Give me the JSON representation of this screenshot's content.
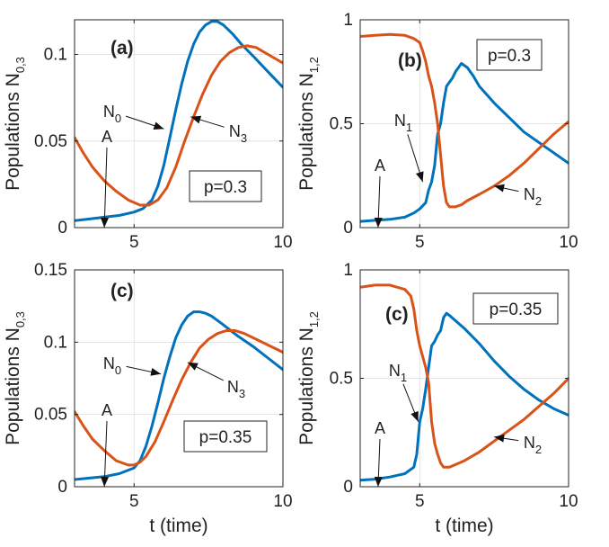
{
  "figure": {
    "xlabel": "t (time)",
    "colors": {
      "series_blue": "#0072BD",
      "series_orange": "#D95319",
      "axis": "#262626",
      "grid": "#e3e3e3"
    }
  },
  "chart_data": [
    {
      "type": "line",
      "panel_label": "(a)",
      "ylabel": "Populations N",
      "ylabel_sub": "0,3",
      "xlabel": "",
      "xlim": [
        3,
        10
      ],
      "ylim": [
        0,
        0.12
      ],
      "xticks": [
        {
          "v": 5,
          "label": "5"
        },
        {
          "v": 10,
          "label": "10"
        }
      ],
      "yticks": [
        {
          "v": 0,
          "label": "0"
        },
        {
          "v": 0.05,
          "label": "0.05"
        },
        {
          "v": 0.1,
          "label": "0.1"
        }
      ],
      "p_label": "p=0.3",
      "series": [
        {
          "name": "N0",
          "color": "#0072BD",
          "x": [
            3.0,
            3.5,
            4.0,
            4.5,
            5.0,
            5.3,
            5.6,
            5.8,
            6.0,
            6.2,
            6.4,
            6.6,
            6.8,
            7.0,
            7.2,
            7.4,
            7.6,
            7.8,
            8.0,
            8.3,
            8.6,
            9.0,
            9.5,
            10.0
          ],
          "values": [
            0.004,
            0.005,
            0.006,
            0.007,
            0.009,
            0.011,
            0.016,
            0.024,
            0.036,
            0.052,
            0.068,
            0.083,
            0.096,
            0.106,
            0.113,
            0.117,
            0.119,
            0.119,
            0.117,
            0.112,
            0.106,
            0.099,
            0.09,
            0.081
          ]
        },
        {
          "name": "N3",
          "color": "#D95319",
          "x": [
            3.0,
            3.3,
            3.6,
            4.0,
            4.4,
            4.8,
            5.2,
            5.5,
            5.8,
            6.1,
            6.4,
            6.7,
            7.0,
            7.3,
            7.6,
            7.9,
            8.2,
            8.5,
            8.8,
            9.1,
            9.5,
            10.0
          ],
          "values": [
            0.052,
            0.043,
            0.035,
            0.027,
            0.021,
            0.016,
            0.013,
            0.013,
            0.016,
            0.023,
            0.035,
            0.05,
            0.064,
            0.077,
            0.088,
            0.096,
            0.101,
            0.104,
            0.105,
            0.104,
            0.1,
            0.095
          ]
        }
      ],
      "annotations": [
        {
          "text": "A",
          "target": [
            4.0,
            0.0
          ]
        },
        {
          "text": "N",
          "sub": "0",
          "target": [
            6.0,
            0.057
          ]
        },
        {
          "text": "N",
          "sub": "3",
          "target": [
            6.9,
            0.064
          ]
        }
      ]
    },
    {
      "type": "line",
      "panel_label": "(b)",
      "ylabel": "Populations N",
      "ylabel_sub": "1,2",
      "xlabel": "",
      "xlim": [
        3,
        10
      ],
      "ylim": [
        0,
        1
      ],
      "xticks": [
        {
          "v": 5,
          "label": "5"
        },
        {
          "v": 10,
          "label": "10"
        }
      ],
      "yticks": [
        {
          "v": 0,
          "label": "0"
        },
        {
          "v": 0.5,
          "label": "0.5"
        },
        {
          "v": 1,
          "label": "1"
        }
      ],
      "p_label": "p=0.3",
      "series": [
        {
          "name": "N1",
          "color": "#0072BD",
          "x": [
            3.0,
            3.5,
            4.0,
            4.5,
            4.8,
            5.0,
            5.2,
            5.3,
            5.4,
            5.5,
            5.6,
            5.7,
            5.8,
            5.9,
            6.0,
            6.1,
            6.2,
            6.4,
            6.6,
            6.8,
            7.0,
            7.5,
            8.0,
            8.5,
            9.0,
            9.5,
            10.0
          ],
          "values": [
            0.03,
            0.035,
            0.04,
            0.05,
            0.07,
            0.09,
            0.12,
            0.18,
            0.22,
            0.3,
            0.45,
            0.5,
            0.6,
            0.68,
            0.7,
            0.72,
            0.75,
            0.79,
            0.77,
            0.73,
            0.68,
            0.6,
            0.53,
            0.46,
            0.41,
            0.36,
            0.31
          ]
        },
        {
          "name": "N2",
          "color": "#D95319",
          "x": [
            3.0,
            3.5,
            4.0,
            4.5,
            4.8,
            5.0,
            5.1,
            5.2,
            5.3,
            5.4,
            5.5,
            5.6,
            5.7,
            5.8,
            5.9,
            6.0,
            6.2,
            6.4,
            6.6,
            7.0,
            7.5,
            8.0,
            8.5,
            9.0,
            9.5,
            10.0
          ],
          "values": [
            0.92,
            0.925,
            0.93,
            0.925,
            0.91,
            0.89,
            0.85,
            0.8,
            0.73,
            0.68,
            0.6,
            0.5,
            0.35,
            0.2,
            0.12,
            0.1,
            0.1,
            0.11,
            0.13,
            0.16,
            0.2,
            0.25,
            0.31,
            0.38,
            0.45,
            0.51
          ]
        }
      ],
      "annotations": [
        {
          "text": "A",
          "target": [
            3.6,
            0.0
          ]
        },
        {
          "text": "N",
          "sub": "1",
          "target": [
            5.1,
            0.22
          ]
        },
        {
          "text": "N",
          "sub": "2",
          "target": [
            7.5,
            0.2
          ]
        }
      ]
    },
    {
      "type": "line",
      "panel_label": "(c)",
      "ylabel": "Populations N",
      "ylabel_sub": "0,3",
      "xlabel": "t (time)",
      "xlim": [
        3,
        10
      ],
      "ylim": [
        0,
        0.15
      ],
      "xticks": [
        {
          "v": 5,
          "label": "5"
        },
        {
          "v": 10,
          "label": "10"
        }
      ],
      "yticks": [
        {
          "v": 0,
          "label": "0"
        },
        {
          "v": 0.05,
          "label": "0.05"
        },
        {
          "v": 0.1,
          "label": "0.1"
        },
        {
          "v": 0.15,
          "label": "0.15"
        }
      ],
      "p_label": "p=0.35",
      "series": [
        {
          "name": "N0",
          "color": "#0072BD",
          "x": [
            3.0,
            3.5,
            4.0,
            4.5,
            5.0,
            5.2,
            5.4,
            5.6,
            5.8,
            6.0,
            6.2,
            6.4,
            6.6,
            6.8,
            7.0,
            7.2,
            7.4,
            7.6,
            7.8,
            8.0,
            8.5,
            9.0,
            9.5,
            10.0
          ],
          "values": [
            0.005,
            0.006,
            0.007,
            0.009,
            0.013,
            0.018,
            0.028,
            0.042,
            0.058,
            0.075,
            0.09,
            0.103,
            0.112,
            0.118,
            0.121,
            0.121,
            0.12,
            0.118,
            0.115,
            0.112,
            0.104,
            0.097,
            0.089,
            0.081
          ]
        },
        {
          "name": "N3",
          "color": "#D95319",
          "x": [
            3.0,
            3.3,
            3.6,
            4.0,
            4.4,
            4.8,
            5.0,
            5.2,
            5.4,
            5.7,
            6.0,
            6.3,
            6.6,
            6.9,
            7.2,
            7.5,
            7.8,
            8.1,
            8.4,
            8.7,
            9.0,
            9.5,
            10.0
          ],
          "values": [
            0.052,
            0.042,
            0.033,
            0.025,
            0.018,
            0.015,
            0.015,
            0.017,
            0.021,
            0.031,
            0.045,
            0.06,
            0.074,
            0.086,
            0.096,
            0.102,
            0.106,
            0.108,
            0.108,
            0.106,
            0.103,
            0.098,
            0.093
          ]
        }
      ],
      "annotations": [
        {
          "text": "A",
          "target": [
            4.0,
            0.0
          ]
        },
        {
          "text": "N",
          "sub": "0",
          "target": [
            5.9,
            0.078
          ]
        },
        {
          "text": "N",
          "sub": "3",
          "target": [
            6.8,
            0.086
          ]
        }
      ]
    },
    {
      "type": "line",
      "panel_label": "(c)",
      "ylabel": "Populations N",
      "ylabel_sub": "1,2",
      "xlabel": "t (time)",
      "xlim": [
        3,
        10
      ],
      "ylim": [
        0,
        1
      ],
      "xticks": [
        {
          "v": 5,
          "label": "5"
        },
        {
          "v": 10,
          "label": "10"
        }
      ],
      "yticks": [
        {
          "v": 0,
          "label": "0"
        },
        {
          "v": 0.5,
          "label": "0.5"
        },
        {
          "v": 1,
          "label": "1"
        }
      ],
      "p_label": "p=0.35",
      "series": [
        {
          "name": "N1",
          "color": "#0072BD",
          "x": [
            3.0,
            3.5,
            4.0,
            4.5,
            4.8,
            4.9,
            5.0,
            5.1,
            5.2,
            5.3,
            5.4,
            5.5,
            5.6,
            5.7,
            5.8,
            5.9,
            6.0,
            6.5,
            7.0,
            7.5,
            8.0,
            8.5,
            9.0,
            9.5,
            10.0
          ],
          "values": [
            0.03,
            0.035,
            0.045,
            0.06,
            0.09,
            0.15,
            0.3,
            0.36,
            0.45,
            0.55,
            0.65,
            0.67,
            0.7,
            0.72,
            0.78,
            0.8,
            0.79,
            0.73,
            0.66,
            0.58,
            0.51,
            0.45,
            0.4,
            0.36,
            0.33
          ]
        },
        {
          "name": "N2",
          "color": "#D95319",
          "x": [
            3.0,
            3.5,
            4.0,
            4.5,
            4.7,
            4.8,
            4.9,
            5.0,
            5.1,
            5.2,
            5.3,
            5.4,
            5.5,
            5.6,
            5.7,
            5.8,
            6.0,
            6.5,
            7.0,
            7.5,
            8.0,
            8.5,
            9.0,
            9.5,
            10.0
          ],
          "values": [
            0.92,
            0.93,
            0.93,
            0.91,
            0.88,
            0.82,
            0.72,
            0.65,
            0.6,
            0.55,
            0.48,
            0.3,
            0.2,
            0.15,
            0.11,
            0.09,
            0.09,
            0.12,
            0.16,
            0.21,
            0.26,
            0.31,
            0.37,
            0.43,
            0.5
          ]
        }
      ],
      "annotations": [
        {
          "text": "A",
          "target": [
            3.6,
            0.0
          ]
        },
        {
          "text": "N",
          "sub": "1",
          "target": [
            4.95,
            0.3
          ]
        },
        {
          "text": "N",
          "sub": "2",
          "target": [
            7.5,
            0.23
          ]
        }
      ]
    }
  ]
}
